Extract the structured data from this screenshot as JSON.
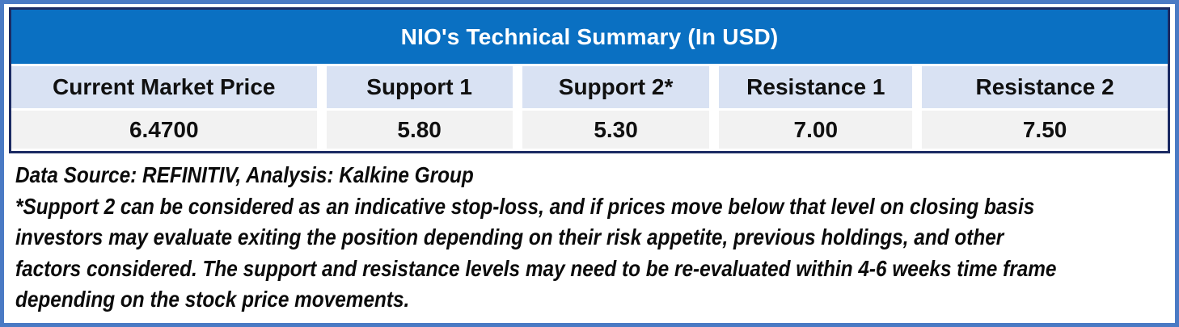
{
  "colors": {
    "frame_border": "#4a7ac4",
    "table_border": "#1b2a63",
    "title_bg": "#0a70c2",
    "title_text": "#ffffff",
    "header_bg": "#d9e2f3",
    "value_bg": "#f2f2f2",
    "text": "#0b0b0b"
  },
  "chart_data": {
    "type": "table",
    "title": "NIO's Technical Summary (In USD)",
    "columns": [
      "Current Market Price",
      "Support 1",
      "Support 2*",
      "Resistance 1",
      "Resistance 2"
    ],
    "rows": [
      [
        "6.4700",
        "5.80",
        "5.30",
        "7.00",
        "7.50"
      ]
    ],
    "values": {
      "current_market_price": 6.47,
      "support_1": 5.8,
      "support_2": 5.3,
      "resistance_1": 7.0,
      "resistance_2": 7.5
    },
    "layout_hints": {
      "title_position": "top-merged-row",
      "grid": "white-gaps-between-cells",
      "value_row_count": 1
    }
  },
  "notes": {
    "lines": [
      "Data Source: REFINITIV, Analysis: Kalkine Group",
      "*Support 2 can be considered as an indicative stop-loss, and if prices move below that level on closing basis",
      "investors may evaluate exiting the position depending on their risk appetite, previous holdings, and other",
      "factors considered. The support and resistance levels may need to be re-evaluated within 4-6 weeks time frame",
      "depending on the stock price movements."
    ],
    "full_disclaimer": "*Support 2 can be considered as an indicative stop-loss, and if prices move below that level on closing basis investors may evaluate exiting the position depending on their risk appetite, previous holdings, and other factors considered. The support and resistance levels may need to be re-evaluated within 4-6 weeks time frame depending on the stock price movements.",
    "data_source": "REFINITIV",
    "analysis_by": "Kalkine Group"
  }
}
